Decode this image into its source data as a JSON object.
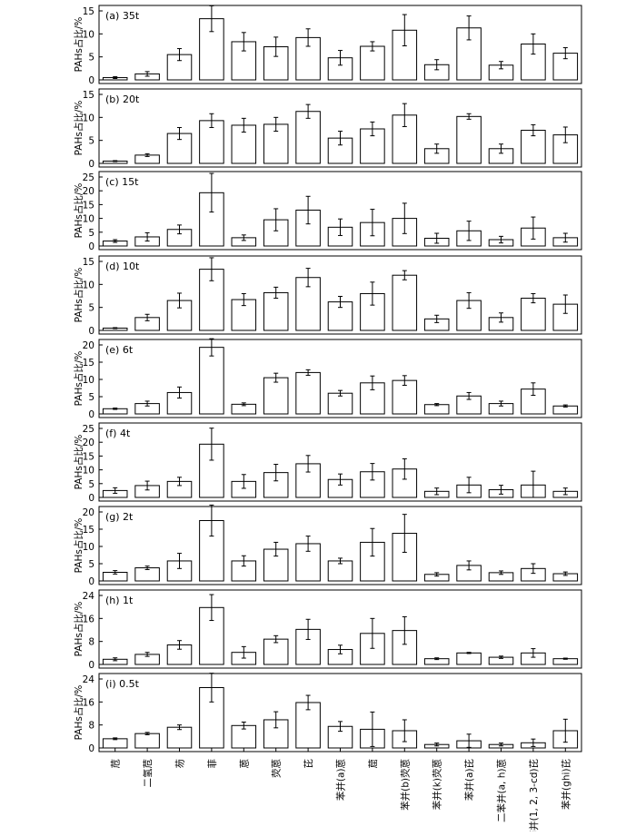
{
  "chart_data": [
    {
      "panel": "(a) 35t",
      "type": "bar",
      "ylabel": "PAHs占比/%",
      "ylim": [
        0,
        15
      ],
      "yticks": [
        0,
        5,
        10,
        15
      ],
      "values": [
        0.5,
        1.3,
        5.5,
        13.3,
        8.3,
        7.2,
        9.2,
        4.8,
        7.3,
        10.8,
        3.3,
        11.3,
        3.2,
        7.8,
        5.8
      ],
      "errors": [
        0.2,
        0.5,
        1.3,
        2.8,
        2.0,
        2.1,
        1.9,
        1.6,
        1.0,
        3.4,
        1.1,
        2.6,
        0.8,
        2.2,
        1.2
      ]
    },
    {
      "panel": "(b) 20t",
      "type": "bar",
      "ylabel": "PAHs占比/%",
      "ylim": [
        0,
        15
      ],
      "yticks": [
        0,
        5,
        10,
        15
      ],
      "values": [
        0.5,
        1.8,
        6.5,
        9.3,
        8.3,
        8.5,
        11.3,
        5.5,
        7.5,
        10.5,
        3.2,
        10.2,
        3.2,
        7.2,
        6.2
      ],
      "errors": [
        0.1,
        0.3,
        1.3,
        1.5,
        1.5,
        1.5,
        1.5,
        1.5,
        1.5,
        2.5,
        1.0,
        0.6,
        1.0,
        1.2,
        1.7
      ]
    },
    {
      "panel": "(c) 15t",
      "type": "bar",
      "ylabel": "PAHs占比/%",
      "ylim": [
        0,
        25
      ],
      "yticks": [
        0,
        5,
        10,
        15,
        20,
        25
      ],
      "values": [
        1.8,
        3.3,
        6.0,
        19.3,
        3.0,
        9.5,
        13.0,
        6.8,
        8.5,
        10.0,
        2.8,
        5.5,
        2.3,
        6.5,
        3.0
      ],
      "errors": [
        0.5,
        1.5,
        1.6,
        7.0,
        1.0,
        4.0,
        5.0,
        3.0,
        4.8,
        5.5,
        1.8,
        3.5,
        1.2,
        4.0,
        1.6
      ]
    },
    {
      "panel": "(d) 10t",
      "type": "bar",
      "ylabel": "PAHs占比/%",
      "ylim": [
        0,
        15
      ],
      "yticks": [
        0,
        5,
        10,
        15
      ],
      "values": [
        0.5,
        2.8,
        6.5,
        13.3,
        6.7,
        8.2,
        11.5,
        6.2,
        8.0,
        12.0,
        2.5,
        6.5,
        2.8,
        7.0,
        5.7
      ],
      "errors": [
        0.1,
        0.7,
        1.6,
        2.5,
        1.3,
        1.2,
        2.0,
        1.2,
        2.5,
        1.0,
        0.8,
        1.7,
        1.0,
        1.0,
        2.0
      ]
    },
    {
      "panel": "(e) 6t",
      "type": "bar",
      "ylabel": "PAHs占比/%",
      "ylim": [
        0,
        20
      ],
      "yticks": [
        0,
        5,
        10,
        15,
        20
      ],
      "values": [
        1.5,
        3.0,
        6.2,
        19.3,
        2.8,
        10.5,
        12.0,
        6.0,
        9.0,
        9.7,
        2.7,
        5.2,
        3.0,
        7.2,
        2.3
      ],
      "errors": [
        0.2,
        0.7,
        1.6,
        2.5,
        0.4,
        1.3,
        0.8,
        0.8,
        2.0,
        1.4,
        0.3,
        1.0,
        0.7,
        1.8,
        0.3
      ]
    },
    {
      "panel": "(f) 4t",
      "type": "bar",
      "ylabel": "PAHs占比/%",
      "ylim": [
        0,
        25
      ],
      "yticks": [
        0,
        5,
        10,
        15,
        20,
        25
      ],
      "values": [
        2.5,
        4.3,
        5.8,
        19.3,
        5.8,
        9.0,
        12.2,
        6.5,
        9.3,
        10.3,
        2.2,
        4.5,
        2.8,
        4.5,
        2.2
      ],
      "errors": [
        1.0,
        1.6,
        1.5,
        5.8,
        2.5,
        3.0,
        3.0,
        2.0,
        3.0,
        3.7,
        1.2,
        2.8,
        1.6,
        5.0,
        1.2
      ]
    },
    {
      "panel": "(g) 2t",
      "type": "bar",
      "ylabel": "PAHs占比/%",
      "ylim": [
        0,
        20
      ],
      "yticks": [
        0,
        5,
        10,
        15,
        20
      ],
      "values": [
        2.5,
        3.8,
        5.8,
        17.5,
        5.8,
        9.2,
        10.8,
        5.8,
        11.2,
        13.8,
        1.9,
        4.5,
        2.4,
        3.6,
        2.1
      ],
      "errors": [
        0.5,
        0.5,
        2.2,
        4.5,
        1.5,
        2.0,
        2.2,
        0.8,
        4.0,
        5.5,
        0.5,
        1.3,
        0.5,
        1.4,
        0.5
      ]
    },
    {
      "panel": "(h) 1t",
      "type": "bar",
      "ylabel": "PAHs占比/%",
      "ylim": [
        0,
        24
      ],
      "yticks": [
        0,
        8,
        16,
        24
      ],
      "values": [
        1.8,
        3.5,
        6.8,
        19.8,
        4.2,
        8.8,
        12.2,
        5.2,
        10.8,
        11.8,
        2.0,
        4.0,
        2.5,
        4.0,
        2.0
      ],
      "errors": [
        0.5,
        0.7,
        1.5,
        4.5,
        2.0,
        1.2,
        3.5,
        1.5,
        5.2,
        4.8,
        0.3,
        0.2,
        0.4,
        1.5,
        0.2
      ]
    },
    {
      "panel": "(i) 0.5t",
      "type": "bar",
      "ylabel": "PAHs占比/%",
      "ylim": [
        0,
        24
      ],
      "yticks": [
        0,
        8,
        16,
        24
      ],
      "values": [
        3.2,
        5.0,
        7.2,
        21.0,
        7.8,
        9.8,
        15.8,
        7.5,
        6.5,
        6.0,
        1.2,
        2.5,
        1.2,
        1.8,
        6.0
      ],
      "errors": [
        0.3,
        0.4,
        0.8,
        5.0,
        1.2,
        2.8,
        2.5,
        1.7,
        6.0,
        3.8,
        0.5,
        2.3,
        0.5,
        1.3,
        4.0
      ]
    }
  ],
  "categories": [
    "苊",
    "二氢苊",
    "芴",
    "菲",
    "蒽",
    "荧蒽",
    "芘",
    "苯并(a)蒽",
    "䓛",
    "苯并(b)荧蒽",
    "苯并(k)荧蒽",
    "苯并(a)芘",
    "二苯并(a, h)蒽",
    "茚并(1, 2, 3-cd)芘",
    "苯并(ghi)芘"
  ],
  "colors": {
    "bar_fill": "#ffffff",
    "stroke": "#000000"
  },
  "grid": "off",
  "legend": "none"
}
